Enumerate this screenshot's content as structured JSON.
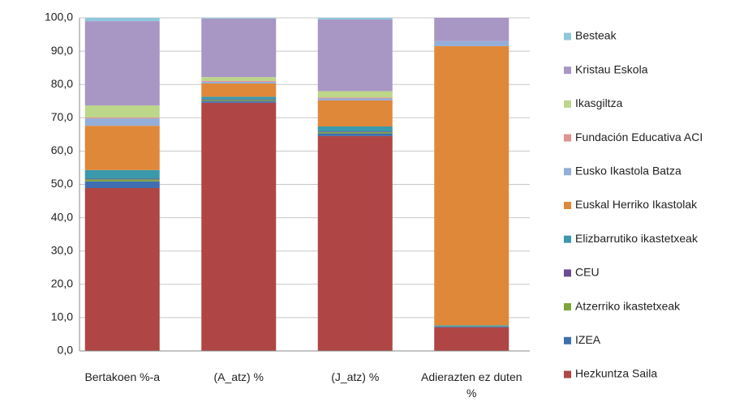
{
  "chart_data": {
    "type": "stacked-bar",
    "categories": [
      "Bertakoen %-a",
      "(A_atz) %",
      "(J_atz) %",
      "Adierazten ez duten %"
    ],
    "series": [
      {
        "name": "Hezkuntza Saila",
        "color": "#b04545",
        "values": [
          48.9,
          74.5,
          64.5,
          7.1
        ]
      },
      {
        "name": "IZEA",
        "color": "#3f6fb0",
        "values": [
          2.0,
          0.5,
          0.8,
          0.2
        ]
      },
      {
        "name": "Atzerriko ikastetxeak",
        "color": "#7ea43c",
        "values": [
          0.6,
          0.3,
          0.4,
          0.1
        ]
      },
      {
        "name": "CEU",
        "color": "#6a4c93",
        "values": [
          0.2,
          0.2,
          0.2,
          0
        ]
      },
      {
        "name": "Elizbarrutiko ikastetxeak",
        "color": "#3a9aac",
        "values": [
          2.6,
          0.8,
          1.5,
          0.3
        ]
      },
      {
        "name": "Euskal Herriko Ikastolak",
        "color": "#e0883a",
        "values": [
          13.3,
          4.0,
          7.8,
          83.8
        ]
      },
      {
        "name": "Eusko Ikastola Batza",
        "color": "#93aed8",
        "values": [
          2.2,
          0.5,
          0.6,
          1.5
        ]
      },
      {
        "name": "Fundación Educativa ACI",
        "color": "#e0938f",
        "values": [
          0.3,
          0.3,
          0.3,
          0
        ]
      },
      {
        "name": "Ikasgiltza",
        "color": "#bcd68a",
        "values": [
          3.6,
          1.1,
          1.9,
          0
        ]
      },
      {
        "name": "Kristau Eskola",
        "color": "#a896c4",
        "values": [
          25.3,
          17.6,
          21.5,
          7.0
        ]
      },
      {
        "name": "Besteak",
        "color": "#8fc7dc",
        "values": [
          1.0,
          0.2,
          0.5,
          0
        ]
      }
    ],
    "ylim": [
      0,
      100
    ],
    "yticks": [
      {
        "value": 0,
        "label": "0,0"
      },
      {
        "value": 10,
        "label": "10,0"
      },
      {
        "value": 20,
        "label": "20,0"
      },
      {
        "value": 30,
        "label": "30,0"
      },
      {
        "value": 40,
        "label": "40,0"
      },
      {
        "value": 50,
        "label": "50,0"
      },
      {
        "value": 60,
        "label": "60,0"
      },
      {
        "value": 70,
        "label": "70,0"
      },
      {
        "value": 80,
        "label": "80,0"
      },
      {
        "value": 90,
        "label": "90,0"
      },
      {
        "value": 100,
        "label": "100,0"
      }
    ],
    "grid": true,
    "legend": "right"
  }
}
